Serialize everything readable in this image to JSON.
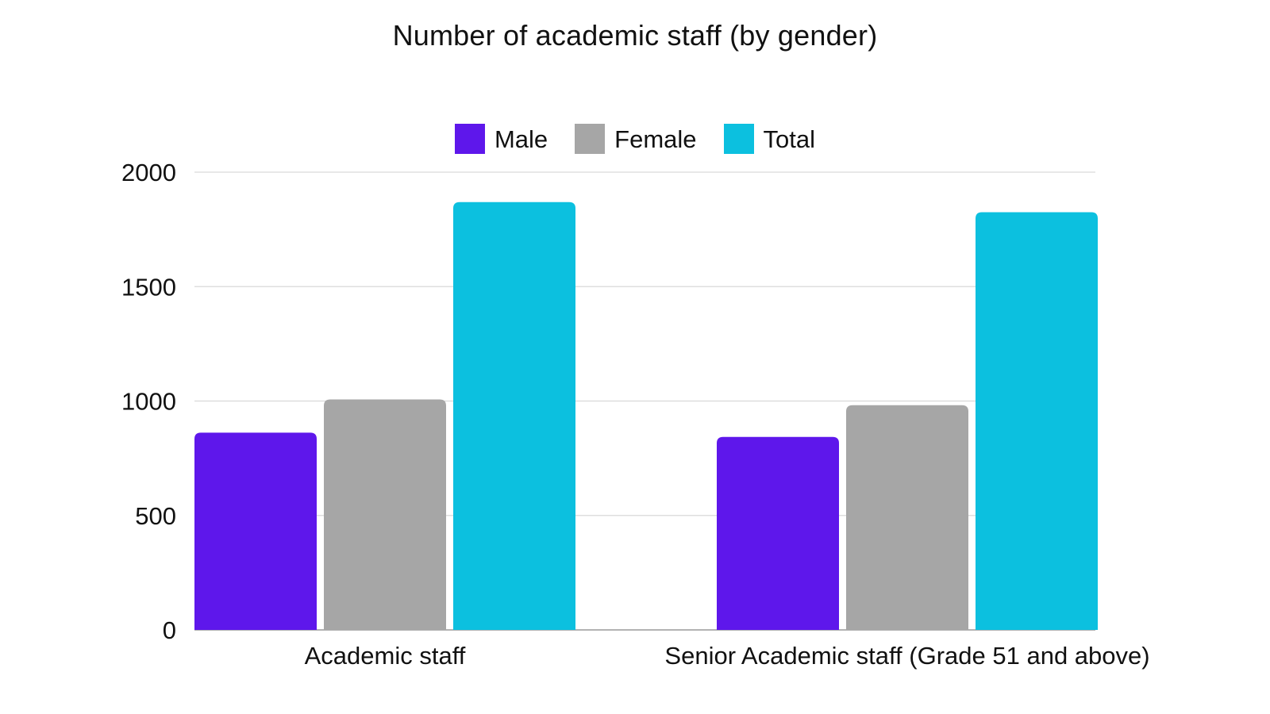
{
  "chart_data": {
    "type": "bar",
    "title": "Number of academic staff (by gender)",
    "categories": [
      "Academic staff",
      "Senior Academic staff (Grade 51 and above)"
    ],
    "series": [
      {
        "name": "Male",
        "values": [
          862,
          843
        ],
        "color": "#5E17EB"
      },
      {
        "name": "Female",
        "values": [
          1007,
          982
        ],
        "color": "#A6A6A6"
      },
      {
        "name": "Total",
        "values": [
          1869,
          1825
        ],
        "color": "#0CC0DF"
      }
    ],
    "xlabel": "",
    "ylabel": "",
    "ylim": [
      0,
      2000
    ],
    "yticks": [
      "0",
      "500",
      "1000",
      "1500",
      "2000"
    ],
    "grid": true,
    "legend_position": "top-center"
  }
}
